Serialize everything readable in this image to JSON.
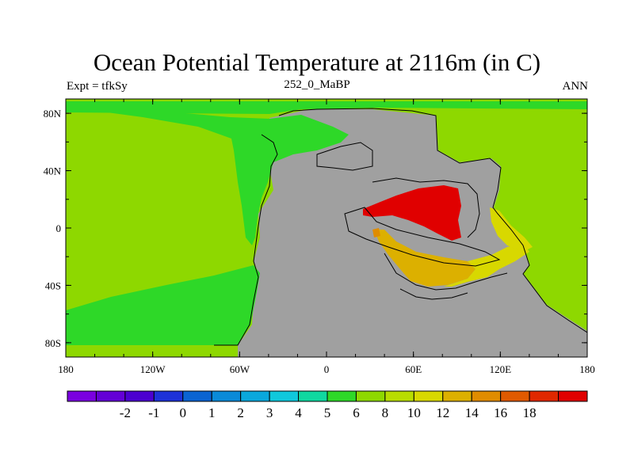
{
  "title": "Ocean Potential Temperature at 2116m (in C)",
  "subtitle_left": "Expt = tfkSy",
  "subtitle_center": "252_0_MaBP",
  "subtitle_right": "ANN",
  "map": {
    "x_ticks": [
      {
        "lon": -180,
        "label": "180"
      },
      {
        "lon": -120,
        "label": "120W"
      },
      {
        "lon": -60,
        "label": "60W"
      },
      {
        "lon": 0,
        "label": "0"
      },
      {
        "lon": 60,
        "label": "60E"
      },
      {
        "lon": 120,
        "label": "120E"
      },
      {
        "lon": 180,
        "label": "180"
      }
    ],
    "y_ticks": [
      {
        "lat": 80,
        "label": "80N"
      },
      {
        "lat": 40,
        "label": "40N"
      },
      {
        "lat": 0,
        "label": "0"
      },
      {
        "lat": -40,
        "label": "40S"
      },
      {
        "lat": -80,
        "label": "80S"
      }
    ],
    "lon_range": [
      -180,
      180
    ],
    "lat_range": [
      -90,
      90
    ],
    "land_color": "#a0a0a0"
  },
  "colorbar": {
    "colors": [
      "#7a00e0",
      "#6400d6",
      "#4c00d0",
      "#1e32d8",
      "#0a64d2",
      "#0a8ad8",
      "#0aa8dc",
      "#10c8dc",
      "#10d8a0",
      "#2ed828",
      "#8ed800",
      "#b8dc00",
      "#d8d800",
      "#dcb000",
      "#e08c00",
      "#e05a00",
      "#e02800",
      "#e00000"
    ],
    "labels": [
      "-2",
      "-1",
      "0",
      "1",
      "2",
      "3",
      "4",
      "5",
      "6",
      "8",
      "10",
      "12",
      "14",
      "16",
      "18"
    ]
  }
}
